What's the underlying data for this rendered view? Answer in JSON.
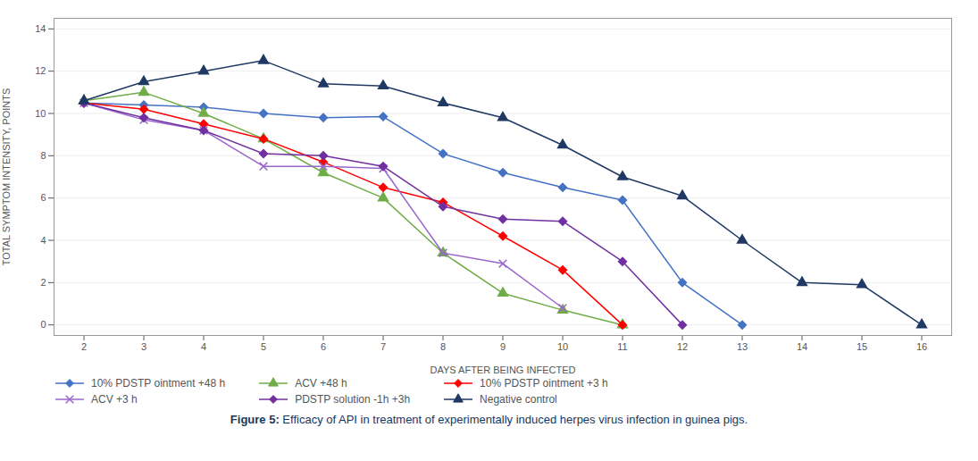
{
  "chart_data": {
    "type": "line",
    "xlabel": "DAYS AFTER BEING INFECTED",
    "ylabel": "TOTAL SYMPTOM INTENSITY, POINTS",
    "caption": "Figure 5: Efficacy of API in treatment of experimentally induced herpes virus infection in guinea pigs.",
    "caption_color": "#17375E",
    "xlim": [
      1.5,
      16.5
    ],
    "ylim": [
      -0.5,
      14.5
    ],
    "xticks": [
      2,
      3,
      4,
      5,
      6,
      7,
      8,
      9,
      10,
      11,
      12,
      13,
      14,
      15,
      16
    ],
    "yticks": [
      0,
      2,
      4,
      6,
      8,
      10,
      12,
      14
    ],
    "grid": "y",
    "legend": "bottom",
    "series": [
      {
        "name": "10% PDSTP ointment +48 h",
        "color": "#4472C4",
        "marker": "diamond",
        "x": [
          2,
          3,
          4,
          5,
          6,
          7,
          8,
          9,
          10,
          11,
          12,
          13
        ],
        "values": [
          10.5,
          10.4,
          10.3,
          10.0,
          9.8,
          9.85,
          8.1,
          7.2,
          6.5,
          5.9,
          2.0,
          0.0
        ]
      },
      {
        "name": "ACV +48 h",
        "color": "#70AD47",
        "marker": "triangle",
        "x": [
          2,
          3,
          4,
          5,
          6,
          7,
          8,
          9,
          10,
          11
        ],
        "values": [
          10.6,
          11.0,
          10.0,
          8.8,
          7.2,
          6.0,
          3.4,
          1.5,
          0.7,
          0.0
        ]
      },
      {
        "name": "10% PDSTP ointment +3 h",
        "color": "#FF0000",
        "marker": "diamond",
        "x": [
          2,
          3,
          4,
          5,
          6,
          7,
          8,
          9,
          10,
          11
        ],
        "values": [
          10.5,
          10.2,
          9.5,
          8.8,
          7.7,
          6.5,
          5.8,
          4.2,
          2.6,
          0.0
        ]
      },
      {
        "name": "ACV +3 h",
        "color": "#9966CC",
        "marker": "x",
        "x": [
          2,
          3,
          4,
          5,
          6,
          7,
          8,
          9,
          10
        ],
        "values": [
          10.5,
          9.7,
          9.2,
          7.5,
          7.5,
          7.4,
          3.4,
          2.9,
          0.8
        ]
      },
      {
        "name": "PDSTP solution -1h +3h",
        "color": "#7030A0",
        "marker": "diamond",
        "x": [
          2,
          3,
          4,
          5,
          6,
          7,
          8,
          9,
          10,
          11,
          12
        ],
        "values": [
          10.5,
          9.8,
          9.2,
          8.1,
          8.0,
          7.5,
          5.6,
          5.0,
          4.9,
          3.0,
          0.0
        ]
      },
      {
        "name": "Negative control",
        "color": "#1F3864",
        "marker": "triangle",
        "x": [
          2,
          3,
          4,
          5,
          6,
          7,
          8,
          9,
          10,
          11,
          12,
          13,
          14,
          15,
          16
        ],
        "values": [
          10.6,
          11.5,
          12.0,
          12.5,
          11.4,
          11.3,
          10.5,
          9.8,
          8.5,
          7.0,
          6.1,
          4.0,
          2.0,
          1.9,
          0.0
        ]
      }
    ]
  }
}
